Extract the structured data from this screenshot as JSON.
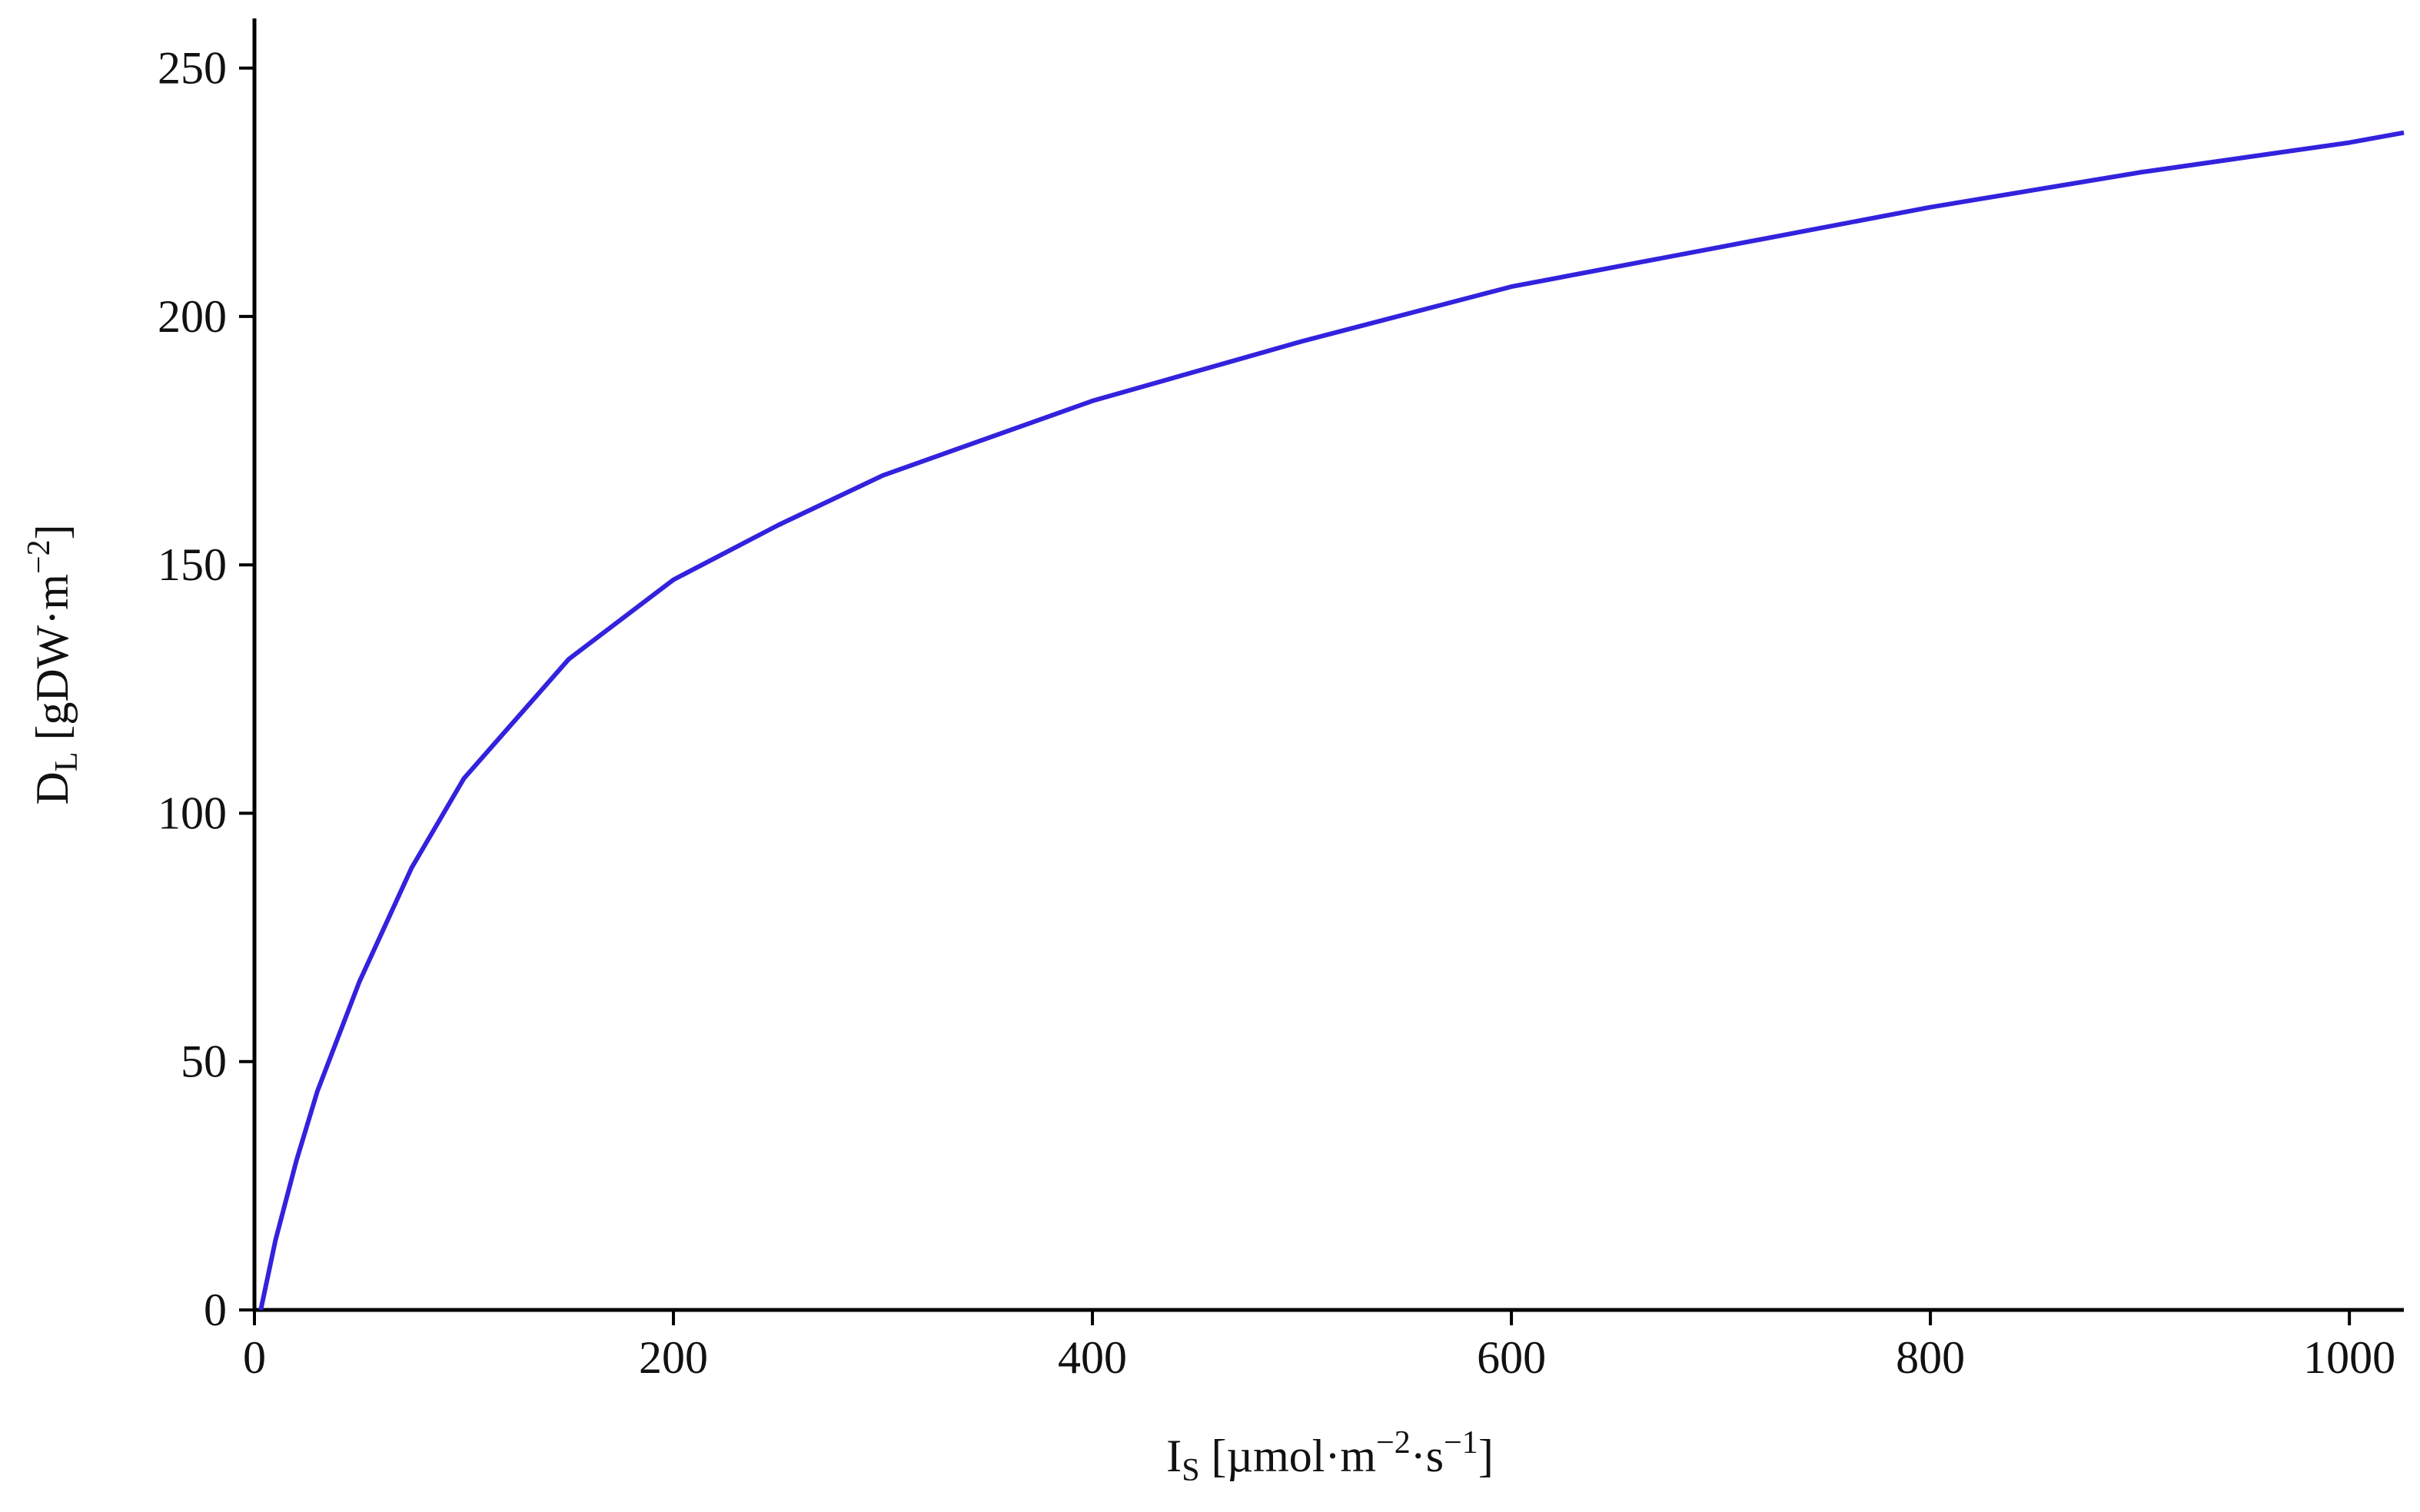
{
  "chart_data": {
    "type": "line",
    "x_label": [
      "I",
      "S",
      " [µmol·m",
      "−2",
      "·s",
      "−1",
      "]"
    ],
    "y_label": [
      "D",
      "L",
      " [gDW·m",
      "−2",
      "]"
    ],
    "x": [
      3,
      10,
      20,
      30,
      50,
      75,
      100,
      150,
      200,
      250,
      300,
      400,
      500,
      600,
      700,
      800,
      900,
      1000,
      1026
    ],
    "series": [
      {
        "color": "#3322dd",
        "values": [
          0,
          14,
          30,
          44,
          66,
          89,
          107,
          131,
          147,
          158,
          168,
          183,
          195,
          206,
          214,
          222,
          229,
          235,
          237
        ]
      }
    ],
    "xlim": [
      0,
      1026
    ],
    "ylim": [
      0,
      260
    ],
    "xticks": [
      0,
      200,
      400,
      600,
      800,
      1000
    ],
    "yticks": [
      0,
      50,
      100,
      150,
      200,
      250
    ],
    "grid": false
  }
}
